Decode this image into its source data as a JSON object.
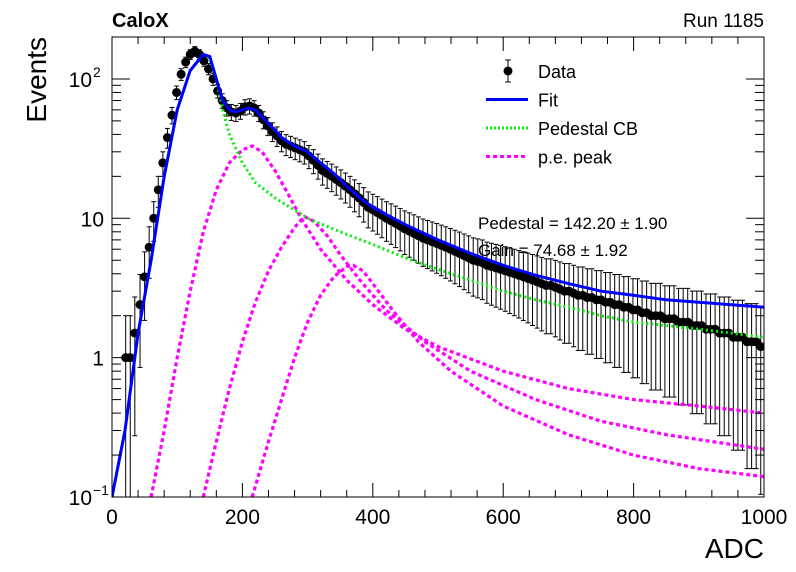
{
  "header": {
    "experiment": "CaloX",
    "run": "Run 1185"
  },
  "chart_data": {
    "type": "scatter",
    "xlabel": "ADC",
    "ylabel": "Events",
    "xlim": [
      0,
      1000
    ],
    "ylim": [
      0.1,
      200
    ],
    "y_scale": "log",
    "x_ticks": [
      0,
      200,
      400,
      600,
      800,
      1000
    ],
    "y_ticks": [
      {
        "value": 0.1,
        "label": "10",
        "exp": "−1"
      },
      {
        "value": 1,
        "label": "1",
        "exp": ""
      },
      {
        "value": 10,
        "label": "10",
        "exp": ""
      },
      {
        "value": 100,
        "label": "10",
        "exp": "2"
      }
    ],
    "legend_position": "top-right",
    "legend": [
      {
        "label": "Data",
        "style": "marker",
        "color": "#000000"
      },
      {
        "label": "Fit",
        "style": "solid",
        "color": "#0000ff"
      },
      {
        "label": "Pedestal CB",
        "style": "dotted",
        "color": "#00ee00"
      },
      {
        "label": "p.e. peak",
        "style": "dashed",
        "color": "#ff00ff"
      }
    ],
    "annotations": [
      "Pedestal = 142.20 ± 1.90",
      "Gain = 74.68 ± 1.92"
    ],
    "data_points": [
      [
        21,
        1.0
      ],
      [
        28,
        1.0
      ],
      [
        35,
        1.5
      ],
      [
        43,
        2.4
      ],
      [
        50,
        3.8
      ],
      [
        57,
        6.2
      ],
      [
        64,
        10
      ],
      [
        71,
        16
      ],
      [
        78,
        25
      ],
      [
        85,
        38
      ],
      [
        92,
        55
      ],
      [
        99,
        80
      ],
      [
        106,
        108
      ],
      [
        113,
        132
      ],
      [
        120,
        150
      ],
      [
        127,
        158
      ],
      [
        134,
        150
      ],
      [
        141,
        135
      ],
      [
        148,
        118
      ],
      [
        155,
        100
      ],
      [
        162,
        82
      ],
      [
        169,
        70
      ],
      [
        176,
        62
      ],
      [
        183,
        58
      ],
      [
        190,
        57
      ],
      [
        197,
        59
      ],
      [
        204,
        63
      ],
      [
        211,
        64
      ],
      [
        218,
        62
      ],
      [
        225,
        57
      ],
      [
        232,
        51
      ],
      [
        239,
        46
      ],
      [
        246,
        42
      ],
      [
        253,
        39
      ],
      [
        260,
        36
      ],
      [
        267,
        34
      ],
      [
        274,
        33
      ],
      [
        281,
        32
      ],
      [
        288,
        31
      ],
      [
        295,
        30
      ],
      [
        302,
        28
      ],
      [
        309,
        26
      ],
      [
        316,
        24
      ],
      [
        323,
        22
      ],
      [
        330,
        21
      ],
      [
        337,
        20
      ],
      [
        344,
        19
      ],
      [
        351,
        18
      ],
      [
        358,
        17
      ],
      [
        365,
        16
      ],
      [
        372,
        15
      ],
      [
        379,
        14
      ],
      [
        386,
        13
      ],
      [
        393,
        12
      ],
      [
        400,
        11.5
      ],
      [
        407,
        11
      ],
      [
        414,
        10.5
      ],
      [
        421,
        10
      ],
      [
        428,
        9.6
      ],
      [
        435,
        9.2
      ],
      [
        442,
        8.8
      ],
      [
        449,
        8.4
      ],
      [
        456,
        8.1
      ],
      [
        463,
        7.8
      ],
      [
        470,
        7.5
      ],
      [
        477,
        7.2
      ],
      [
        484,
        7.0
      ],
      [
        491,
        6.8
      ],
      [
        498,
        6.6
      ],
      [
        505,
        6.4
      ],
      [
        512,
        6.2
      ],
      [
        519,
        6.0
      ],
      [
        526,
        5.8
      ],
      [
        533,
        5.6
      ],
      [
        540,
        5.4
      ],
      [
        547,
        5.2
      ],
      [
        554,
        5.0
      ],
      [
        561,
        4.9
      ],
      [
        568,
        4.8
      ],
      [
        575,
        4.6
      ],
      [
        582,
        4.5
      ],
      [
        589,
        4.4
      ],
      [
        596,
        4.3
      ],
      [
        603,
        4.2
      ],
      [
        610,
        4.1
      ],
      [
        617,
        4.0
      ],
      [
        624,
        3.9
      ],
      [
        631,
        3.8
      ],
      [
        638,
        3.7
      ],
      [
        645,
        3.6
      ],
      [
        652,
        3.5
      ],
      [
        659,
        3.4
      ],
      [
        666,
        3.3
      ],
      [
        673,
        3.3
      ],
      [
        680,
        3.2
      ],
      [
        687,
        3.1
      ],
      [
        694,
        3.0
      ],
      [
        701,
        3.0
      ],
      [
        708,
        2.9
      ],
      [
        715,
        2.8
      ],
      [
        722,
        2.8
      ],
      [
        729,
        2.7
      ],
      [
        736,
        2.7
      ],
      [
        743,
        2.6
      ],
      [
        750,
        2.6
      ],
      [
        757,
        2.5
      ],
      [
        764,
        2.5
      ],
      [
        771,
        2.4
      ],
      [
        778,
        2.4
      ],
      [
        785,
        2.3
      ],
      [
        792,
        2.3
      ],
      [
        799,
        2.2
      ],
      [
        806,
        2.2
      ],
      [
        813,
        2.1
      ],
      [
        820,
        2.1
      ],
      [
        827,
        2.0
      ],
      [
        834,
        2.0
      ],
      [
        841,
        2.0
      ],
      [
        848,
        1.9
      ],
      [
        855,
        1.9
      ],
      [
        862,
        1.9
      ],
      [
        869,
        1.8
      ],
      [
        876,
        1.8
      ],
      [
        883,
        1.8
      ],
      [
        890,
        1.7
      ],
      [
        897,
        1.7
      ],
      [
        904,
        1.7
      ],
      [
        911,
        1.6
      ],
      [
        918,
        1.6
      ],
      [
        925,
        1.6
      ],
      [
        932,
        1.5
      ],
      [
        939,
        1.5
      ],
      [
        946,
        1.5
      ],
      [
        953,
        1.4
      ],
      [
        960,
        1.4
      ],
      [
        967,
        1.4
      ],
      [
        974,
        1.3
      ],
      [
        981,
        1.3
      ],
      [
        988,
        1.3
      ],
      [
        995,
        1.2
      ]
    ],
    "fit_curve": [
      [
        0,
        0.1
      ],
      [
        20,
        0.3
      ],
      [
        40,
        1.5
      ],
      [
        60,
        5
      ],
      [
        80,
        20
      ],
      [
        100,
        60
      ],
      [
        120,
        115
      ],
      [
        140,
        150
      ],
      [
        150,
        145
      ],
      [
        160,
        100
      ],
      [
        170,
        70
      ],
      [
        180,
        60
      ],
      [
        190,
        58
      ],
      [
        200,
        60
      ],
      [
        210,
        62
      ],
      [
        220,
        60
      ],
      [
        240,
        48
      ],
      [
        260,
        38
      ],
      [
        280,
        33
      ],
      [
        300,
        30
      ],
      [
        320,
        25
      ],
      [
        340,
        21
      ],
      [
        360,
        17
      ],
      [
        380,
        14
      ],
      [
        400,
        12
      ],
      [
        450,
        9
      ],
      [
        500,
        7
      ],
      [
        550,
        5.6
      ],
      [
        600,
        4.6
      ],
      [
        650,
        3.9
      ],
      [
        700,
        3.4
      ],
      [
        750,
        3.0
      ],
      [
        800,
        2.8
      ],
      [
        850,
        2.6
      ],
      [
        900,
        2.5
      ],
      [
        950,
        2.4
      ],
      [
        1000,
        2.3
      ]
    ],
    "pedestal_curve": [
      [
        0,
        0.1
      ],
      [
        20,
        0.3
      ],
      [
        40,
        1.5
      ],
      [
        60,
        5
      ],
      [
        80,
        20
      ],
      [
        100,
        60
      ],
      [
        120,
        115
      ],
      [
        140,
        150
      ],
      [
        150,
        140
      ],
      [
        160,
        100
      ],
      [
        170,
        60
      ],
      [
        180,
        40
      ],
      [
        200,
        25
      ],
      [
        220,
        18
      ],
      [
        250,
        14
      ],
      [
        300,
        10
      ],
      [
        350,
        8
      ],
      [
        400,
        6.5
      ],
      [
        450,
        5.2
      ],
      [
        500,
        4.3
      ],
      [
        550,
        3.6
      ],
      [
        600,
        3.0
      ],
      [
        650,
        2.6
      ],
      [
        700,
        2.3
      ],
      [
        750,
        2.0
      ],
      [
        800,
        1.8
      ],
      [
        850,
        1.7
      ],
      [
        900,
        1.6
      ],
      [
        950,
        1.5
      ],
      [
        1000,
        1.4
      ]
    ],
    "pe_peaks": [
      [
        [
          60,
          0.1
        ],
        [
          80,
          0.3
        ],
        [
          100,
          1
        ],
        [
          120,
          3
        ],
        [
          140,
          8
        ],
        [
          160,
          16
        ],
        [
          180,
          25
        ],
        [
          200,
          31
        ],
        [
          215,
          33
        ],
        [
          230,
          30
        ],
        [
          250,
          22
        ],
        [
          270,
          15
        ],
        [
          290,
          10
        ],
        [
          320,
          6
        ],
        [
          360,
          3.6
        ],
        [
          400,
          2.4
        ],
        [
          450,
          1.6
        ],
        [
          500,
          1.2
        ],
        [
          600,
          0.8
        ],
        [
          700,
          0.6
        ],
        [
          800,
          0.5
        ],
        [
          900,
          0.45
        ],
        [
          1000,
          0.4
        ]
      ],
      [
        [
          140,
          0.1
        ],
        [
          160,
          0.25
        ],
        [
          180,
          0.6
        ],
        [
          200,
          1.3
        ],
        [
          220,
          2.5
        ],
        [
          240,
          4.2
        ],
        [
          260,
          6.2
        ],
        [
          280,
          8.6
        ],
        [
          295,
          10.3
        ],
        [
          310,
          9.5
        ],
        [
          330,
          7.5
        ],
        [
          350,
          5.5
        ],
        [
          380,
          3.6
        ],
        [
          420,
          2.2
        ],
        [
          480,
          1.3
        ],
        [
          550,
          0.8
        ],
        [
          650,
          0.5
        ],
        [
          750,
          0.35
        ],
        [
          850,
          0.28
        ],
        [
          1000,
          0.22
        ]
      ],
      [
        [
          215,
          0.1
        ],
        [
          240,
          0.25
        ],
        [
          260,
          0.5
        ],
        [
          280,
          1.0
        ],
        [
          300,
          1.8
        ],
        [
          320,
          2.8
        ],
        [
          340,
          3.8
        ],
        [
          360,
          4.5
        ],
        [
          370,
          4.6
        ],
        [
          385,
          4.2
        ],
        [
          400,
          3.4
        ],
        [
          430,
          2.2
        ],
        [
          470,
          1.3
        ],
        [
          520,
          0.8
        ],
        [
          600,
          0.45
        ],
        [
          700,
          0.28
        ],
        [
          800,
          0.2
        ],
        [
          900,
          0.16
        ],
        [
          1000,
          0.14
        ]
      ]
    ]
  }
}
